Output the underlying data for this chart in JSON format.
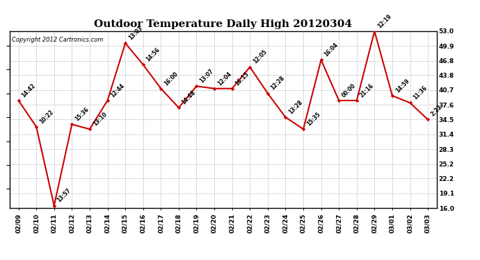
{
  "title": "Outdoor Temperature Daily High 20120304",
  "copyright": "Copyright 2012 Cartronics.com",
  "dates": [
    "02/09",
    "02/10",
    "02/11",
    "02/12",
    "02/13",
    "02/14",
    "02/15",
    "02/16",
    "02/17",
    "02/18",
    "02/19",
    "02/20",
    "02/21",
    "02/22",
    "02/23",
    "02/24",
    "02/25",
    "02/26",
    "02/27",
    "02/28",
    "02/29",
    "03/01",
    "03/02",
    "03/03"
  ],
  "temps": [
    38.5,
    33.0,
    16.5,
    33.5,
    32.5,
    38.5,
    50.5,
    46.0,
    41.0,
    37.0,
    41.5,
    41.0,
    41.0,
    45.5,
    40.0,
    35.0,
    32.5,
    47.0,
    38.5,
    38.5,
    53.0,
    39.5,
    38.0,
    34.5
  ],
  "times": [
    "14:42",
    "10:22",
    "13:57",
    "15:36",
    "13:10",
    "12:44",
    "13:03",
    "14:56",
    "16:00",
    "14:48",
    "13:07",
    "12:04",
    "16:15",
    "12:05",
    "12:28",
    "13:28",
    "15:35",
    "16:04",
    "00:00",
    "21:16",
    "12:19",
    "14:59",
    "11:36",
    "2:22"
  ],
  "ylim_min": 16.0,
  "ylim_max": 53.0,
  "yticks": [
    16.0,
    19.1,
    22.2,
    25.2,
    28.3,
    31.4,
    34.5,
    37.6,
    40.7,
    43.8,
    46.8,
    49.9,
    53.0
  ],
  "line_color": "#cc0000",
  "marker_color": "#cc0000",
  "bg_color": "#ffffff",
  "grid_color": "#cccccc",
  "title_fontsize": 11,
  "tick_fontsize": 6.5,
  "time_fontsize": 5.5,
  "copyright_fontsize": 6.0
}
